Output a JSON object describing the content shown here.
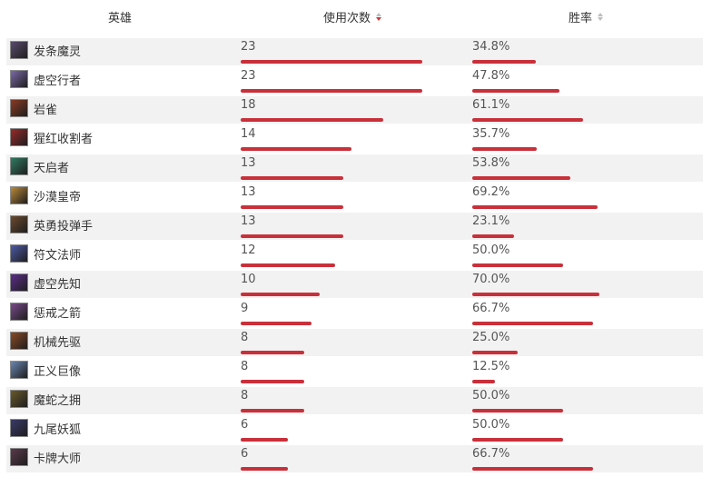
{
  "header": {
    "hero_label": "英雄",
    "uses_label": "使用次数",
    "winrate_label": "胜率"
  },
  "bar_color": "#c9303a",
  "rows": [
    {
      "name": "发条魔灵",
      "uses": "23",
      "winrate": "34.8%",
      "uses_n": 23,
      "win_n": 34.8,
      "avatar_color": "#5a4b6e"
    },
    {
      "name": "虚空行者",
      "uses": "23",
      "winrate": "47.8%",
      "uses_n": 23,
      "win_n": 47.8,
      "avatar_color": "#7c6aa8"
    },
    {
      "name": "岩雀",
      "uses": "18",
      "winrate": "61.1%",
      "uses_n": 18,
      "win_n": 61.1,
      "avatar_color": "#8a3b22"
    },
    {
      "name": "猩红收割者",
      "uses": "14",
      "winrate": "35.7%",
      "uses_n": 14,
      "win_n": 35.7,
      "avatar_color": "#9a2a2a"
    },
    {
      "name": "天启者",
      "uses": "13",
      "winrate": "53.8%",
      "uses_n": 13,
      "win_n": 53.8,
      "avatar_color": "#2f7b61"
    },
    {
      "name": "沙漠皇帝",
      "uses": "13",
      "winrate": "69.2%",
      "uses_n": 13,
      "win_n": 69.2,
      "avatar_color": "#b88a3a"
    },
    {
      "name": "英勇投弹手",
      "uses": "13",
      "winrate": "23.1%",
      "uses_n": 13,
      "win_n": 23.1,
      "avatar_color": "#6b4a2e"
    },
    {
      "name": "符文法师",
      "uses": "12",
      "winrate": "50.0%",
      "uses_n": 12,
      "win_n": 50.0,
      "avatar_color": "#4d5aa6"
    },
    {
      "name": "虚空先知",
      "uses": "10",
      "winrate": "70.0%",
      "uses_n": 10,
      "win_n": 70.0,
      "avatar_color": "#5c2d8a"
    },
    {
      "name": "惩戒之箭",
      "uses": "9",
      "winrate": "66.7%",
      "uses_n": 9,
      "win_n": 66.7,
      "avatar_color": "#7a4a8a"
    },
    {
      "name": "机械先驱",
      "uses": "8",
      "winrate": "25.0%",
      "uses_n": 8,
      "win_n": 25.0,
      "avatar_color": "#8a4a22"
    },
    {
      "name": "正义巨像",
      "uses": "8",
      "winrate": "12.5%",
      "uses_n": 8,
      "win_n": 12.5,
      "avatar_color": "#6a86b0"
    },
    {
      "name": "魔蛇之拥",
      "uses": "8",
      "winrate": "50.0%",
      "uses_n": 8,
      "win_n": 50.0,
      "avatar_color": "#6a5a2a"
    },
    {
      "name": "九尾妖狐",
      "uses": "6",
      "winrate": "50.0%",
      "uses_n": 6,
      "win_n": 50.0,
      "avatar_color": "#3a3a6a"
    },
    {
      "name": "卡牌大师",
      "uses": "6",
      "winrate": "66.7%",
      "uses_n": 6,
      "win_n": 66.7,
      "avatar_color": "#5a3a4a"
    }
  ]
}
